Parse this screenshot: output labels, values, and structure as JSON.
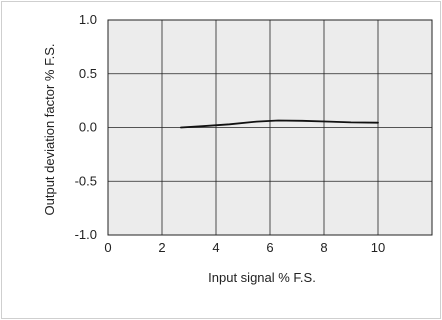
{
  "chart_data": {
    "type": "line",
    "title": "",
    "xlabel": "Input signal % F.S.",
    "ylabel": "Output deviation factor  % F.S.",
    "xlim": [
      0,
      12
    ],
    "ylim": [
      -1.0,
      1.0
    ],
    "x_ticks": [
      0,
      2,
      4,
      6,
      8,
      10
    ],
    "x_tick_labels": [
      "0",
      "2",
      "4",
      "6",
      "8",
      "10"
    ],
    "y_ticks": [
      1.0,
      0.5,
      0.0,
      -0.5,
      -1.0
    ],
    "y_tick_labels": [
      "1.0",
      "0.5",
      "0.0",
      "-0.5",
      "-1.0"
    ],
    "grid": true,
    "plot_background": "#ececec",
    "line_color": "#111111",
    "series": [
      {
        "x": [
          2.7,
          3.5,
          4.5,
          5.5,
          6.3,
          7.2,
          8.2,
          9.0,
          10.0
        ],
        "y": [
          0.0,
          0.012,
          0.03,
          0.055,
          0.065,
          0.062,
          0.055,
          0.047,
          0.045
        ]
      }
    ]
  }
}
